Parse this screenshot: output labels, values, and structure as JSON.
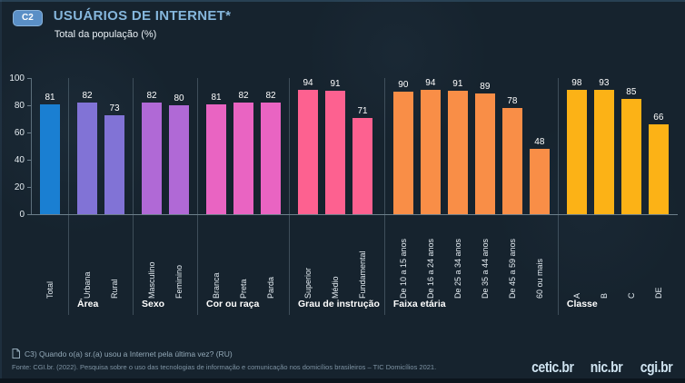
{
  "header": {
    "badge": "C2",
    "title": "USUÁRIOS DE INTERNET*",
    "subtitle": "Total da população (%)"
  },
  "chart_data": {
    "type": "bar",
    "title": "USUÁRIOS DE INTERNET*",
    "subtitle": "Total da população (%)",
    "ylabel": "Total da população (%)",
    "ylim": [
      0,
      100
    ],
    "yticks": [
      0,
      20,
      40,
      60,
      80,
      100
    ],
    "grid": false,
    "value_labels": true,
    "legend": "none",
    "groups": [
      {
        "label": "",
        "color": "#1a7fd2",
        "bars": [
          {
            "label": "Total",
            "value": 81
          }
        ]
      },
      {
        "label": "Área",
        "color": "#8173d6",
        "bars": [
          {
            "label": "Urbana",
            "value": 82
          },
          {
            "label": "Rural",
            "value": 73
          }
        ]
      },
      {
        "label": "Sexo",
        "color": "#b069d6",
        "bars": [
          {
            "label": "Masculino",
            "value": 82
          },
          {
            "label": "Feminino",
            "value": 80
          }
        ]
      },
      {
        "label": "Cor ou raça",
        "color": "#e964c2",
        "bars": [
          {
            "label": "Branca",
            "value": 81
          },
          {
            "label": "Preta",
            "value": 82
          },
          {
            "label": "Parda",
            "value": 82
          }
        ]
      },
      {
        "label": "Grau de instrução",
        "color": "#fd6190",
        "bars": [
          {
            "label": "Superior",
            "value": 94
          },
          {
            "label": "Médio",
            "value": 91
          },
          {
            "label": "Fundamental",
            "value": 71
          }
        ]
      },
      {
        "label": "Faixa etária",
        "color": "#f98e47",
        "bars": [
          {
            "label": "De 10 a 15 anos",
            "value": 90
          },
          {
            "label": "De 16 a 24 anos",
            "value": 94
          },
          {
            "label": "De 25 a 34 anos",
            "value": 91
          },
          {
            "label": "De 35 a 44 anos",
            "value": 89
          },
          {
            "label": "De 45 a 59 anos",
            "value": 78
          },
          {
            "label": "60 ou mais",
            "value": 48
          }
        ]
      },
      {
        "label": "Classe",
        "color": "#fcb216",
        "bars": [
          {
            "label": "A",
            "value": 98
          },
          {
            "label": "B",
            "value": 93
          },
          {
            "label": "C",
            "value": 85
          },
          {
            "label": "DE",
            "value": 66
          }
        ]
      }
    ]
  },
  "footer": {
    "question": "C3) Quando o(a) sr.(a) usou a Internet pela última vez? (RU)",
    "source": "Fonte: CGI.br. (2022). Pesquisa sobre o uso das tecnologias de informação e comunicação nos domicílios brasileiros – TIC Domicílios 2021.",
    "logos": [
      "cetic.br",
      "nic.br",
      "cgi.br"
    ]
  }
}
